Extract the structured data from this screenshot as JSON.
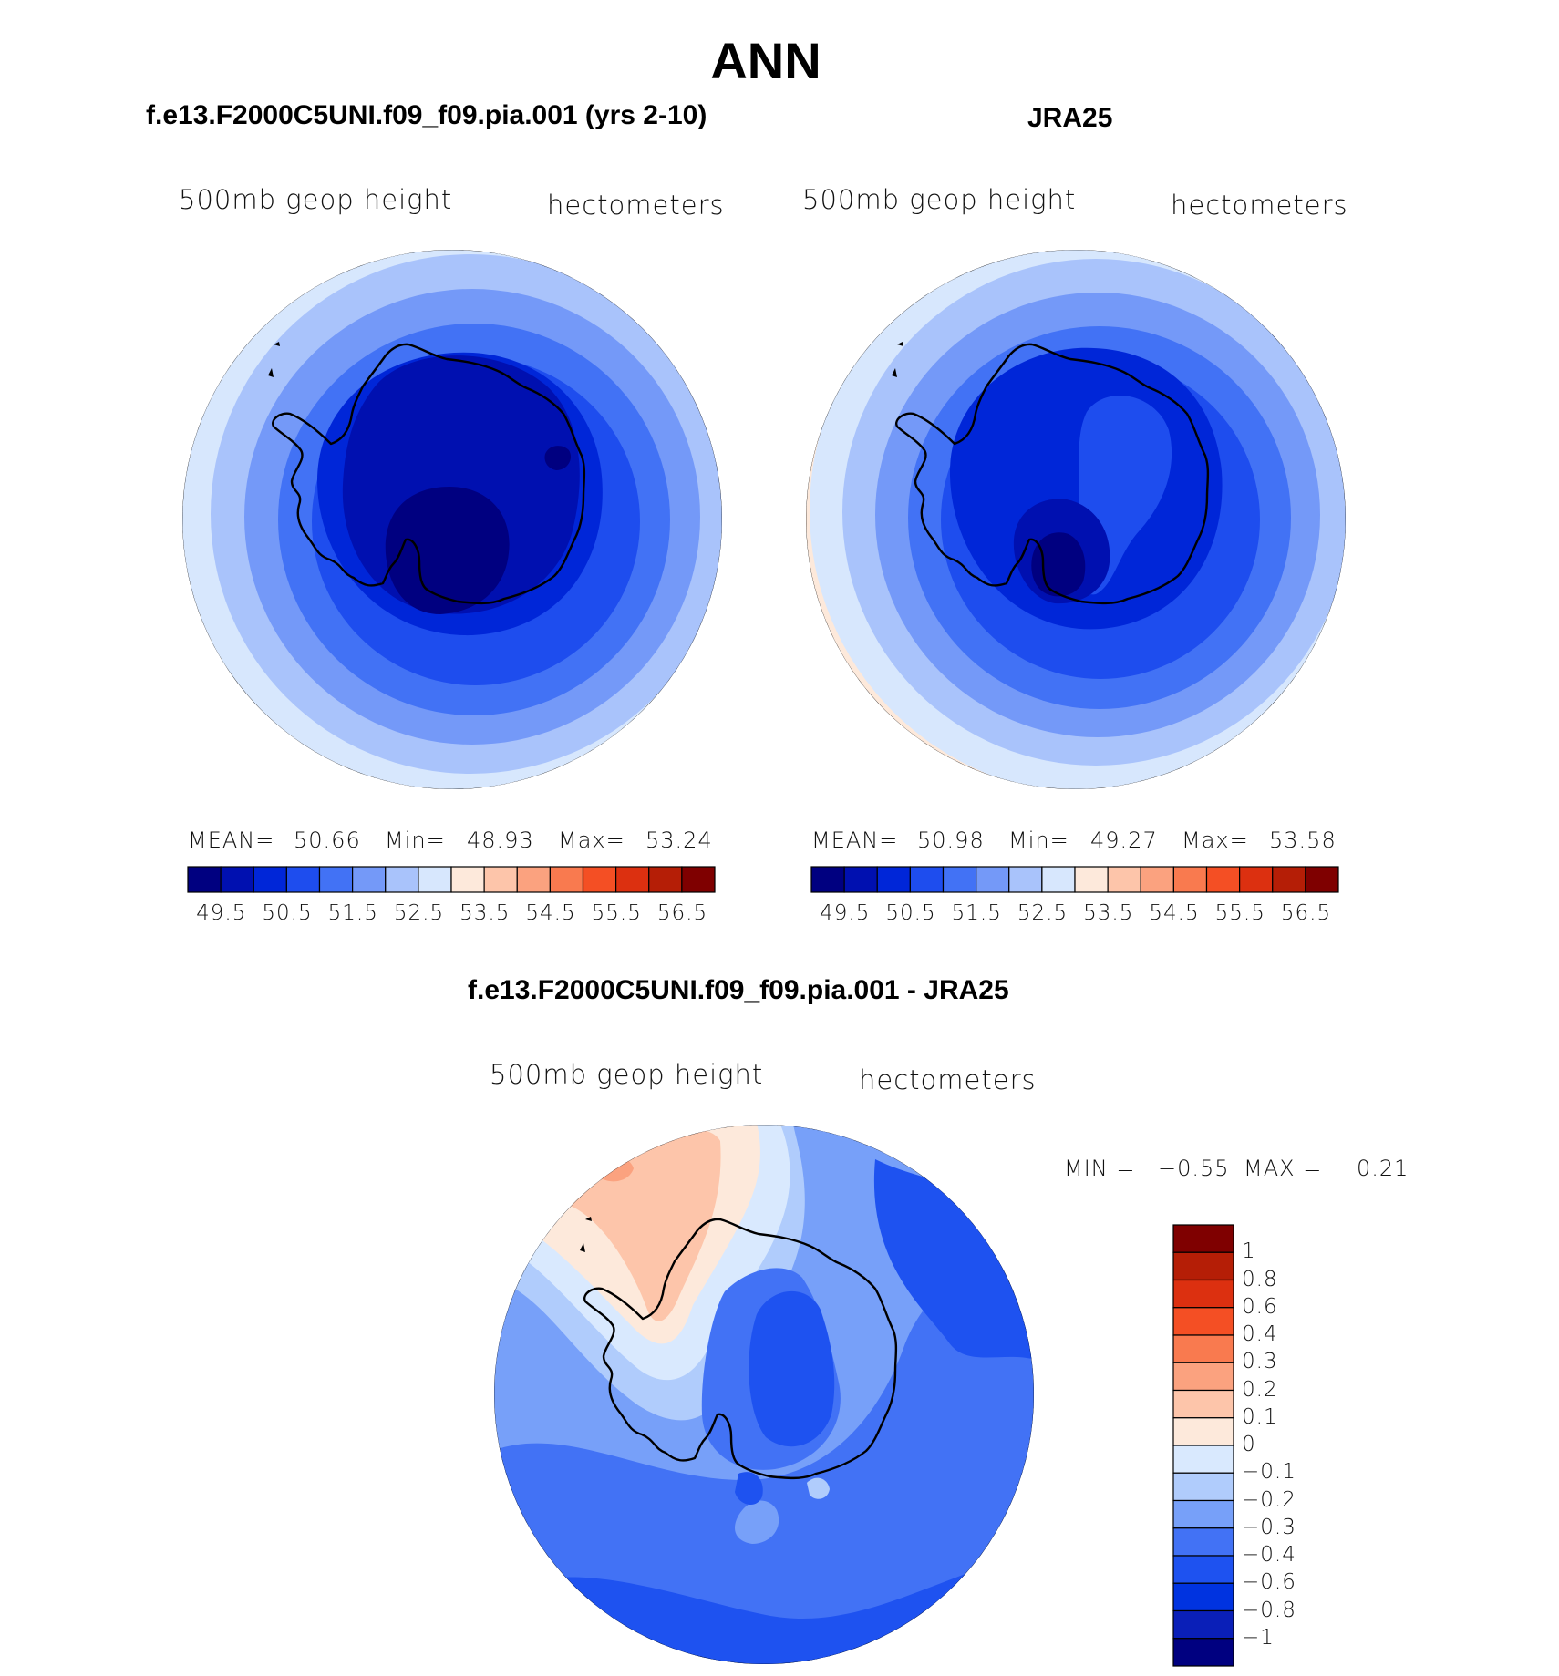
{
  "title": "ANN",
  "colors": {
    "abs": [
      "#000080",
      "#0010b0",
      "#0026d8",
      "#1e4dee",
      "#4272f5",
      "#7499f8",
      "#a9c3fb",
      "#d7e7fd",
      "#fde9db",
      "#fdc5aa",
      "#fba27f",
      "#f97a4f",
      "#f44f24",
      "#dc3010",
      "#b51e06",
      "#7f0000"
    ],
    "diff": [
      "#000080",
      "#0a1fb8",
      "#0033e0",
      "#1e52f0",
      "#4272f5",
      "#77a0f9",
      "#b0ccfc",
      "#d9e9fe",
      "#fde9db",
      "#fdc5aa",
      "#fba27f",
      "#f97a4f",
      "#f44f24",
      "#dc3010",
      "#b51e06",
      "#7f0000"
    ]
  },
  "chart_data": [
    {
      "type": "heatmap",
      "projection": "south-polar stereographic",
      "title": "f.e13.F2000C5UNI.f09_f09.pia.001 (yrs 2-10)",
      "variable": "500mb geop height",
      "units": "hectometers",
      "stats": {
        "mean_label": "MEAN=",
        "mean": "50.66",
        "min_label": "Min=",
        "min": "48.93",
        "max_label": "Max=",
        "max": "53.24"
      },
      "colorbar_ticks": [
        "49.5",
        "50.5",
        "51.5",
        "52.5",
        "53.5",
        "54.5",
        "55.5",
        "56.5"
      ]
    },
    {
      "type": "heatmap",
      "projection": "south-polar stereographic",
      "title": "JRA25",
      "variable": "500mb geop height",
      "units": "hectometers",
      "stats": {
        "mean_label": "MEAN=",
        "mean": "50.98",
        "min_label": "Min=",
        "min": "49.27",
        "max_label": "Max=",
        "max": "53.58"
      },
      "colorbar_ticks": [
        "49.5",
        "50.5",
        "51.5",
        "52.5",
        "53.5",
        "54.5",
        "55.5",
        "56.5"
      ]
    },
    {
      "type": "heatmap",
      "projection": "south-polar stereographic",
      "title": "f.e13.F2000C5UNI.f09_f09.pia.001 - JRA25",
      "variable": "500mb geop height",
      "units": "hectometers",
      "stats": {
        "min_label": "MIN =",
        "min": "−0.55",
        "max_label": "MAX =",
        "max": "0.21"
      },
      "colorbar_ticks": [
        "1",
        "0.8",
        "0.6",
        "0.4",
        "0.3",
        "0.2",
        "0.1",
        "0",
        "−0.1",
        "−0.2",
        "−0.3",
        "−0.4",
        "−0.6",
        "−0.8",
        "−1"
      ]
    }
  ]
}
